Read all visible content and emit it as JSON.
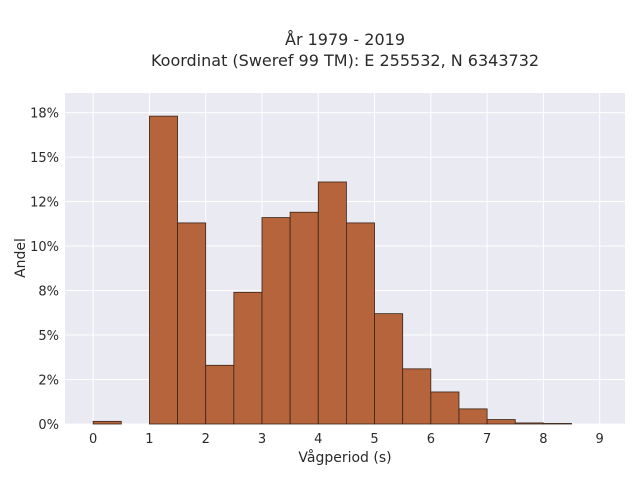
{
  "chart_data": {
    "type": "bar",
    "title": [
      "År 1979 - 2019",
      "Koordinat (Sweref 99 TM): E 255532, N 6343732"
    ],
    "xlabel": "Vågperiod (s)",
    "ylabel": "Andel",
    "xlim": [
      -0.5,
      9.45
    ],
    "ylim": [
      0,
      18.6
    ],
    "x_ticks": [
      "0",
      "1",
      "2",
      "3",
      "4",
      "5",
      "6",
      "7",
      "8",
      "9"
    ],
    "y_ticks": [
      "0%",
      "2%",
      "5%",
      "8%",
      "10%",
      "12%",
      "15%",
      "18%"
    ],
    "y_tick_values": [
      0,
      2.5,
      5,
      7.5,
      10,
      12.5,
      15,
      17.5
    ],
    "bin_width": 0.5,
    "bins": [
      {
        "x0": 0.0,
        "value": 0.15
      },
      {
        "x0": 0.5,
        "value": 0
      },
      {
        "x0": 1.0,
        "value": 17.3
      },
      {
        "x0": 1.5,
        "value": 11.3
      },
      {
        "x0": 2.0,
        "value": 3.3
      },
      {
        "x0": 2.5,
        "value": 7.4
      },
      {
        "x0": 3.0,
        "value": 11.6
      },
      {
        "x0": 3.5,
        "value": 11.9
      },
      {
        "x0": 4.0,
        "value": 13.6
      },
      {
        "x0": 4.5,
        "value": 11.3
      },
      {
        "x0": 5.0,
        "value": 6.2
      },
      {
        "x0": 5.5,
        "value": 3.1
      },
      {
        "x0": 6.0,
        "value": 1.8
      },
      {
        "x0": 6.5,
        "value": 0.85
      },
      {
        "x0": 7.0,
        "value": 0.25
      },
      {
        "x0": 7.5,
        "value": 0.06
      },
      {
        "x0": 8.0,
        "value": 0.03
      }
    ],
    "grid": true,
    "colors": {
      "plot_background": "#eaeaf2",
      "grid": "#ffffff",
      "bar_fill": "#b5643b",
      "bar_edge": "#3a2418"
    }
  }
}
